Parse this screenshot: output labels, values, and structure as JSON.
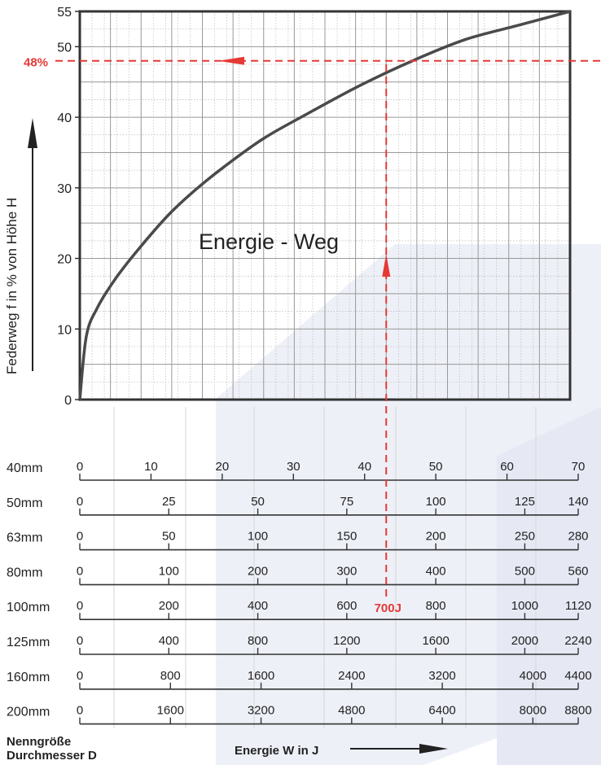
{
  "chart_data": {
    "type": "line",
    "title": "Energie - Weg",
    "ylabel": "Federweg f in % von Höhe H",
    "xlabel": "Energie W in J",
    "ylim": [
      0,
      55
    ],
    "yticks": [
      "0",
      "10",
      "20",
      "30",
      "40",
      "50",
      "55"
    ],
    "grid": true,
    "curve": {
      "x_ref_100mm_J": [
        0,
        15,
        40,
        80,
        130,
        200,
        260,
        330,
        420,
        520,
        640,
        760,
        880,
        1000,
        1120
      ],
      "y_percent": [
        0,
        9,
        13,
        17,
        21,
        26,
        29.5,
        33,
        37,
        40.5,
        44.5,
        48,
        51,
        53,
        55
      ]
    },
    "annotation": {
      "x_label": "700J",
      "y_label": "48%",
      "x_value_J": 700,
      "y_value_percent": 48,
      "color": "#e53935"
    },
    "scales": [
      {
        "size": "40mm",
        "ticks": [
          "0",
          "10",
          "20",
          "30",
          "40",
          "50",
          "60",
          "70"
        ],
        "max": 70
      },
      {
        "size": "50mm",
        "ticks": [
          "0",
          "25",
          "50",
          "75",
          "100",
          "125",
          "140"
        ],
        "max": 140
      },
      {
        "size": "63mm",
        "ticks": [
          "0",
          "50",
          "100",
          "150",
          "200",
          "250",
          "280"
        ],
        "max": 280
      },
      {
        "size": "80mm",
        "ticks": [
          "0",
          "100",
          "200",
          "300",
          "400",
          "500",
          "560"
        ],
        "max": 560
      },
      {
        "size": "100mm",
        "ticks": [
          "0",
          "200",
          "400",
          "600",
          "800",
          "1000",
          "1120"
        ],
        "max": 1120
      },
      {
        "size": "125mm",
        "ticks": [
          "0",
          "400",
          "800",
          "1200",
          "1600",
          "2000",
          "2240"
        ],
        "max": 2240
      },
      {
        "size": "160mm",
        "ticks": [
          "0",
          "800",
          "1600",
          "2400",
          "3200",
          "4000",
          "4400"
        ],
        "max": 4400
      },
      {
        "size": "200mm",
        "ticks": [
          "0",
          "1600",
          "3200",
          "4800",
          "6400",
          "8000",
          "8800"
        ],
        "max": 8800
      }
    ],
    "size_axis_label_line1": "Nenngröße",
    "size_axis_label_line2": "Durchmesser D"
  }
}
